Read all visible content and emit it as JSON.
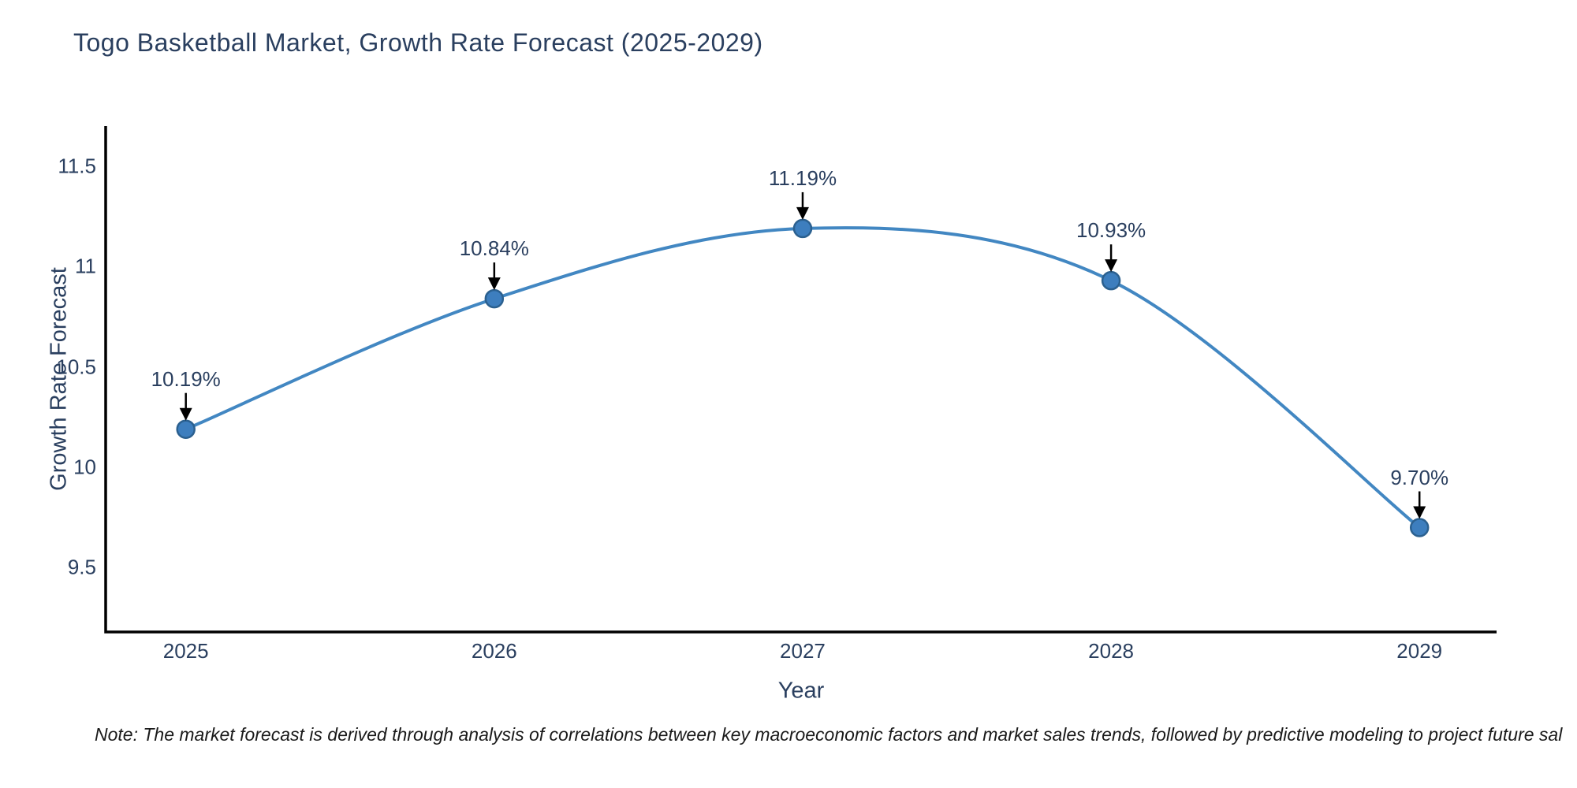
{
  "title": "Togo Basketball Market, Growth Rate Forecast (2025-2029)",
  "note": "Note: The market forecast is derived through analysis of correlations between key macroeconomic factors and market sales trends, followed by predictive modeling to project future sal",
  "chart_data": {
    "type": "line",
    "title": "Togo Basketball Market, Growth Rate Forecast (2025-2029)",
    "xlabel": "Year",
    "ylabel": "Growth Rate Forecast",
    "x": [
      2025,
      2026,
      2027,
      2028,
      2029
    ],
    "series": [
      {
        "name": "Growth Rate Forecast",
        "values": [
          10.19,
          10.84,
          11.19,
          10.93,
          9.7
        ]
      }
    ],
    "point_labels": [
      "10.19%",
      "10.84%",
      "11.19%",
      "10.93%",
      "9.70%"
    ],
    "xticks": [
      2025,
      2026,
      2027,
      2028,
      2029
    ],
    "xtick_labels": [
      "2025",
      "2026",
      "2027",
      "2028",
      "2029"
    ],
    "yticks": [
      9.5,
      10,
      10.5,
      11,
      11.5
    ],
    "ytick_labels": [
      "9.5",
      "10",
      "10.5",
      "11",
      "11.5"
    ],
    "xlim": [
      2024.74,
      2029.25
    ],
    "ylim": [
      9.18,
      11.7
    ],
    "grid": false,
    "legend": false,
    "line_shape": "spline",
    "markers": true,
    "annotations_arrow": true,
    "colors": {
      "line": "#4287C2",
      "marker_fill": "#3D7EBE",
      "marker_edge": "#2B608F",
      "axis_line": "#000000",
      "arrow": "#000000",
      "text": "#2a3f5f",
      "note_text": "#1a1a1a",
      "background": "#ffffff"
    }
  }
}
